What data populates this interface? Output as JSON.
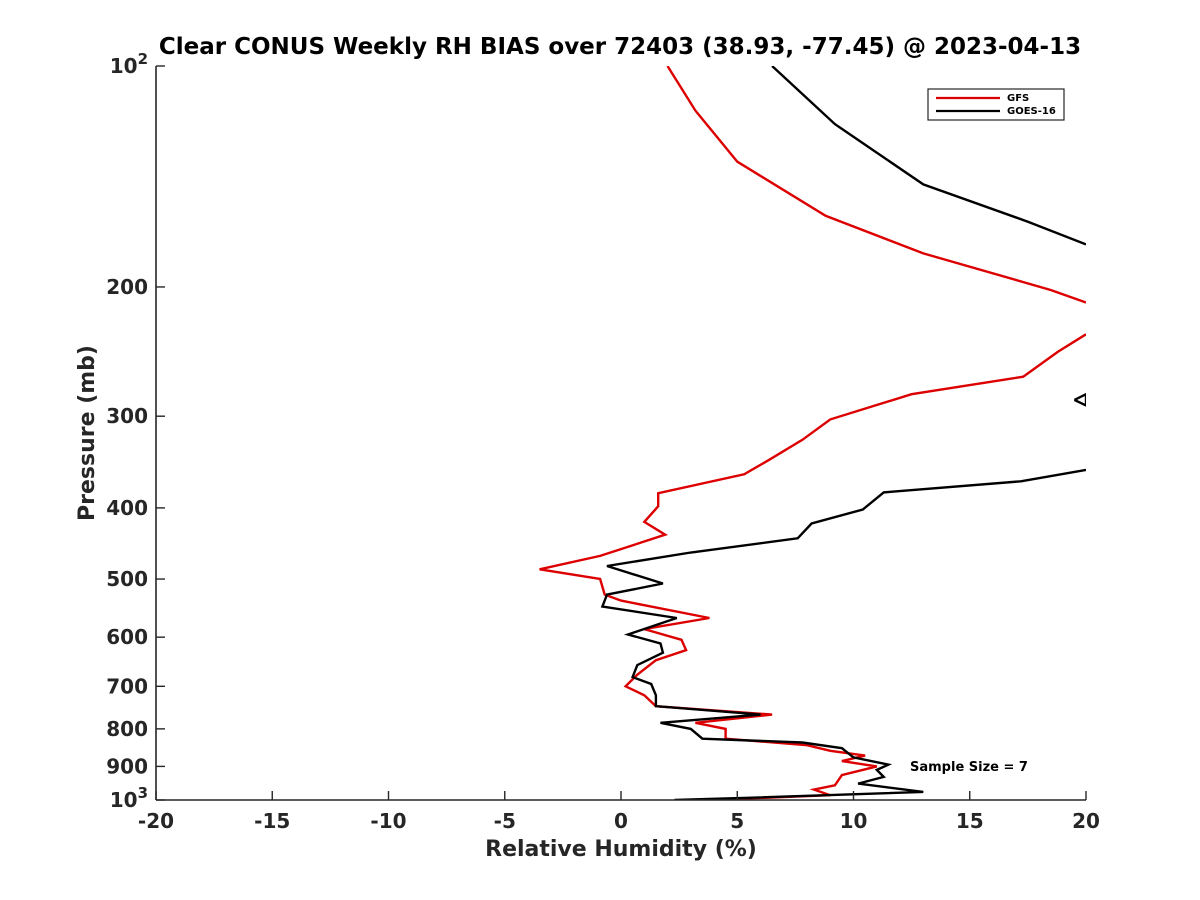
{
  "chart_data": {
    "type": "line",
    "title": "Clear CONUS Weekly RH BIAS over 72403 (38.93, -77.45) @ 2023-04-13",
    "xlabel": "Relative Humidity (%)",
    "ylabel": "Pressure (mb)",
    "xlim": [
      -20,
      20
    ],
    "ylim": [
      100,
      1000
    ],
    "y_scale": "log",
    "y_reversed": true,
    "grid": false,
    "legend_position": "top-right",
    "x_ticks": [
      -20,
      -15,
      -10,
      -5,
      0,
      5,
      10,
      15,
      20
    ],
    "x_tick_labels": [
      "-20",
      "-15",
      "-10",
      "-5",
      "0",
      "5",
      "10",
      "15",
      "20"
    ],
    "y_ticks": [
      {
        "value": 100,
        "base": "10",
        "exp": "2"
      },
      {
        "value": 200,
        "base": "200",
        "exp": ""
      },
      {
        "value": 300,
        "base": "300",
        "exp": ""
      },
      {
        "value": 400,
        "base": "400",
        "exp": ""
      },
      {
        "value": 500,
        "base": "500",
        "exp": ""
      },
      {
        "value": 600,
        "base": "600",
        "exp": ""
      },
      {
        "value": 700,
        "base": "700",
        "exp": ""
      },
      {
        "value": 800,
        "base": "800",
        "exp": ""
      },
      {
        "value": 900,
        "base": "900",
        "exp": ""
      },
      {
        "value": 1000,
        "base": "10",
        "exp": "3"
      }
    ],
    "series": [
      {
        "name": "GFS",
        "color": "#dd0000",
        "segments": [
          [
            [
              2.0,
              100
            ],
            [
              3.2,
              115
            ],
            [
              5.0,
              135
            ],
            [
              8.8,
              160
            ],
            [
              13,
              180
            ],
            [
              18.5,
              202
            ],
            [
              20,
              210
            ]
          ],
          [
            [
              20,
              232
            ],
            [
              18.8,
              245
            ],
            [
              17.3,
              265
            ],
            [
              12.5,
              280
            ],
            [
              9.0,
              303
            ],
            [
              7.8,
              323
            ],
            [
              6.3,
              345
            ],
            [
              5.3,
              360
            ],
            [
              1.6,
              382
            ],
            [
              1.6,
              398
            ],
            [
              1.0,
              418
            ],
            [
              1.9,
              435
            ],
            [
              -0.9,
              465
            ],
            [
              -3.5,
              485
            ],
            [
              -0.9,
              500
            ],
            [
              -0.7,
              525
            ],
            [
              0.0,
              535
            ],
            [
              3.8,
              565
            ],
            [
              1.0,
              585
            ],
            [
              2.6,
              605
            ],
            [
              2.8,
              625
            ],
            [
              1.5,
              645
            ],
            [
              0.7,
              675
            ],
            [
              0.2,
              700
            ],
            [
              1.0,
              720
            ],
            [
              1.5,
              745
            ],
            [
              6.5,
              765
            ],
            [
              3.2,
              785
            ],
            [
              4.5,
              800
            ],
            [
              4.5,
              825
            ],
            [
              8.0,
              842
            ],
            [
              9.0,
              857
            ],
            [
              10.5,
              870
            ],
            [
              9.5,
              885
            ],
            [
              11.0,
              900
            ],
            [
              9.5,
              925
            ],
            [
              9.2,
              955
            ],
            [
              8.3,
              968
            ],
            [
              9.0,
              985
            ],
            [
              5.5,
              995
            ],
            [
              3.0,
              1000
            ]
          ]
        ]
      },
      {
        "name": "GOES-16",
        "color": "#000000",
        "segments": [
          [
            [
              6.5,
              100
            ],
            [
              9.2,
              120
            ],
            [
              13,
              145
            ],
            [
              17.5,
              163
            ],
            [
              20,
              175
            ]
          ],
          [
            [
              19.5,
              285
            ],
            [
              20,
              290
            ],
            [
              20,
              280
            ],
            [
              19.5,
              285
            ]
          ],
          [
            [
              20,
              355
            ],
            [
              17.2,
              368
            ],
            [
              11.3,
              381
            ],
            [
              10.4,
              402
            ],
            [
              8.2,
              420
            ],
            [
              7.6,
              440
            ],
            [
              3.0,
              460
            ],
            [
              -0.6,
              480
            ],
            [
              1.8,
              507
            ],
            [
              -0.6,
              525
            ],
            [
              -0.8,
              545
            ],
            [
              2.4,
              565
            ],
            [
              0.3,
              595
            ],
            [
              1.7,
              612
            ],
            [
              1.8,
              630
            ],
            [
              0.7,
              655
            ],
            [
              0.5,
              680
            ],
            [
              1.3,
              695
            ],
            [
              1.5,
              720
            ],
            [
              1.5,
              745
            ],
            [
              6.0,
              765
            ],
            [
              1.7,
              785
            ],
            [
              3.0,
              800
            ],
            [
              3.5,
              825
            ],
            [
              7.8,
              835
            ],
            [
              9.5,
              850
            ],
            [
              10.0,
              875
            ],
            [
              11.5,
              895
            ],
            [
              11.0,
              910
            ],
            [
              11.3,
              930
            ],
            [
              10.2,
              950
            ],
            [
              13.0,
              975
            ],
            [
              6.0,
              992
            ],
            [
              2.3,
              1000
            ]
          ]
        ]
      }
    ],
    "annotation": "Sample Size = 7"
  }
}
